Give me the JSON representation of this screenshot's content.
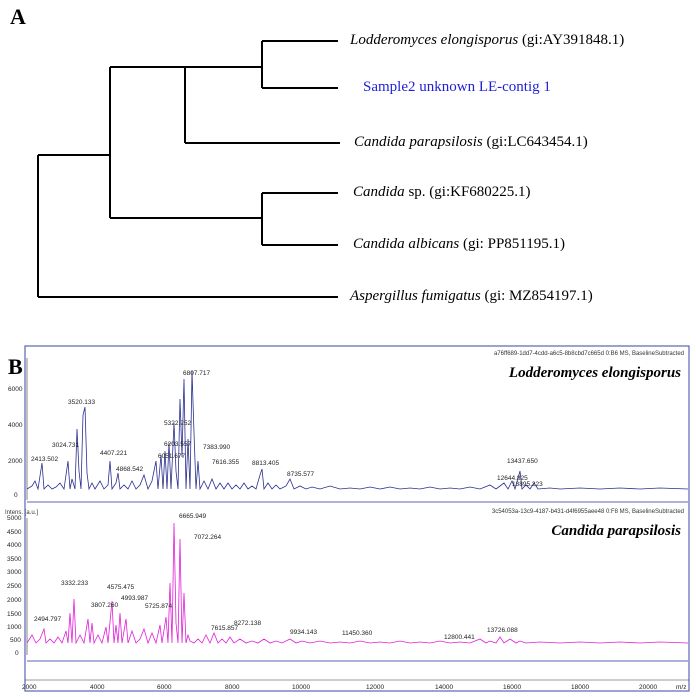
{
  "panel_a": {
    "letter": "A",
    "taxa": [
      {
        "species": "Lodderomyces elongisporus",
        "accession": "(gi:AY391848.1)"
      },
      {
        "species": "",
        "accession": "Sample2 unknown LE-contig 1"
      },
      {
        "species": "Candida parapsilosis",
        "accession": "(gi:LC643454.1)"
      },
      {
        "species": "Candida",
        "accession": "sp. (gi:KF680225.1)"
      },
      {
        "species": "Candida albicans",
        "accession": "(gi: PP851195.1)"
      },
      {
        "species": "Aspergillus fumigatus",
        "accession": "(gi: MZ854197.1)"
      }
    ],
    "highlight_color": "#1f1fd6"
  },
  "panel_b": {
    "letter": "B",
    "x_ticks": [
      "2000",
      "4000",
      "6000",
      "8000",
      "10000",
      "12000",
      "14000",
      "16000",
      "18000",
      "20000"
    ],
    "x_unit": "m/z",
    "spectra": [
      {
        "species": "Lodderomyces elongisporus",
        "header": "a76ff689-1dd7-4cdd-a6c5-8b8cbd7c665d 0:B6 MS, BaselineSubtracted",
        "color": "#2b2f8f",
        "y_axis_title": "",
        "y_ticks": [
          "0",
          "2000",
          "4000",
          "6000"
        ],
        "peak_labels": [
          "2413.502",
          "3024.731",
          "3520.133",
          "4407.221",
          "4868.542",
          "6051.677",
          "6203.557",
          "5322.252",
          "6807.717",
          "7383.990",
          "7616.355",
          "8813.405",
          "8735.577",
          "12644.825",
          "13437.650",
          "13895.223"
        ]
      },
      {
        "species": "Candida parapsilosis",
        "header": "3c54053a-13c9-4187-b431-d4f6955aee48 0:F8 MS, BaselineSubtracted",
        "color": "#e020d8",
        "y_axis_title": "Intens. [a.u.]",
        "y_ticks": [
          "0",
          "500",
          "1000",
          "1500",
          "2000",
          "2500",
          "3000",
          "3500",
          "4000",
          "4500",
          "5000"
        ],
        "peak_labels": [
          "2494.797",
          "3332.233",
          "3807.260",
          "4575.475",
          "4993.987",
          "5725.874",
          "6665.949",
          "7072.264",
          "7615.857",
          "8272.138",
          "9934.143",
          "11450.360",
          "12800.441",
          "13726.088"
        ]
      }
    ]
  }
}
